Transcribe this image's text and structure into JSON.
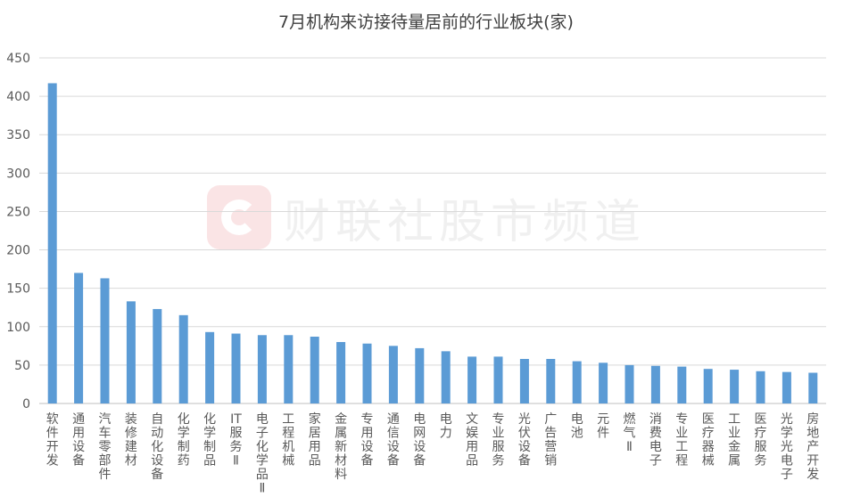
{
  "chart_data": {
    "type": "bar",
    "title": "7月机构来访接待量居前的行业板块(家)",
    "xlabel": "",
    "ylabel": "",
    "ylim": [
      0,
      450
    ],
    "yticks": [
      0,
      50,
      100,
      150,
      200,
      250,
      300,
      350,
      400,
      450
    ],
    "grid": true,
    "legend": "none",
    "bar_color": "#5b9bd5",
    "categories": [
      "软件开发",
      "通用设备",
      "汽车零部件",
      "装修建材",
      "自动化设备",
      "化学制药",
      "化学制品",
      "IT服务Ⅱ",
      "电子化学品Ⅱ",
      "工程机械",
      "家居用品",
      "金属新材料",
      "专用设备",
      "通信设备",
      "电网设备",
      "电力",
      "文娱用品",
      "专业服务",
      "光伏设备",
      "广告营销",
      "电池",
      "元件",
      "燃气Ⅱ",
      "消费电子",
      "专业工程",
      "医疗器械",
      "工业金属",
      "医疗服务",
      "光学光电子",
      "房地产开发"
    ],
    "values": [
      417,
      170,
      163,
      133,
      123,
      115,
      93,
      91,
      89,
      89,
      87,
      80,
      78,
      75,
      72,
      68,
      61,
      61,
      58,
      58,
      55,
      53,
      50,
      49,
      48,
      45,
      44,
      42,
      41,
      40
    ]
  },
  "watermark": {
    "text": "财联社股市频道",
    "logo_color": "#f3b3b7"
  }
}
